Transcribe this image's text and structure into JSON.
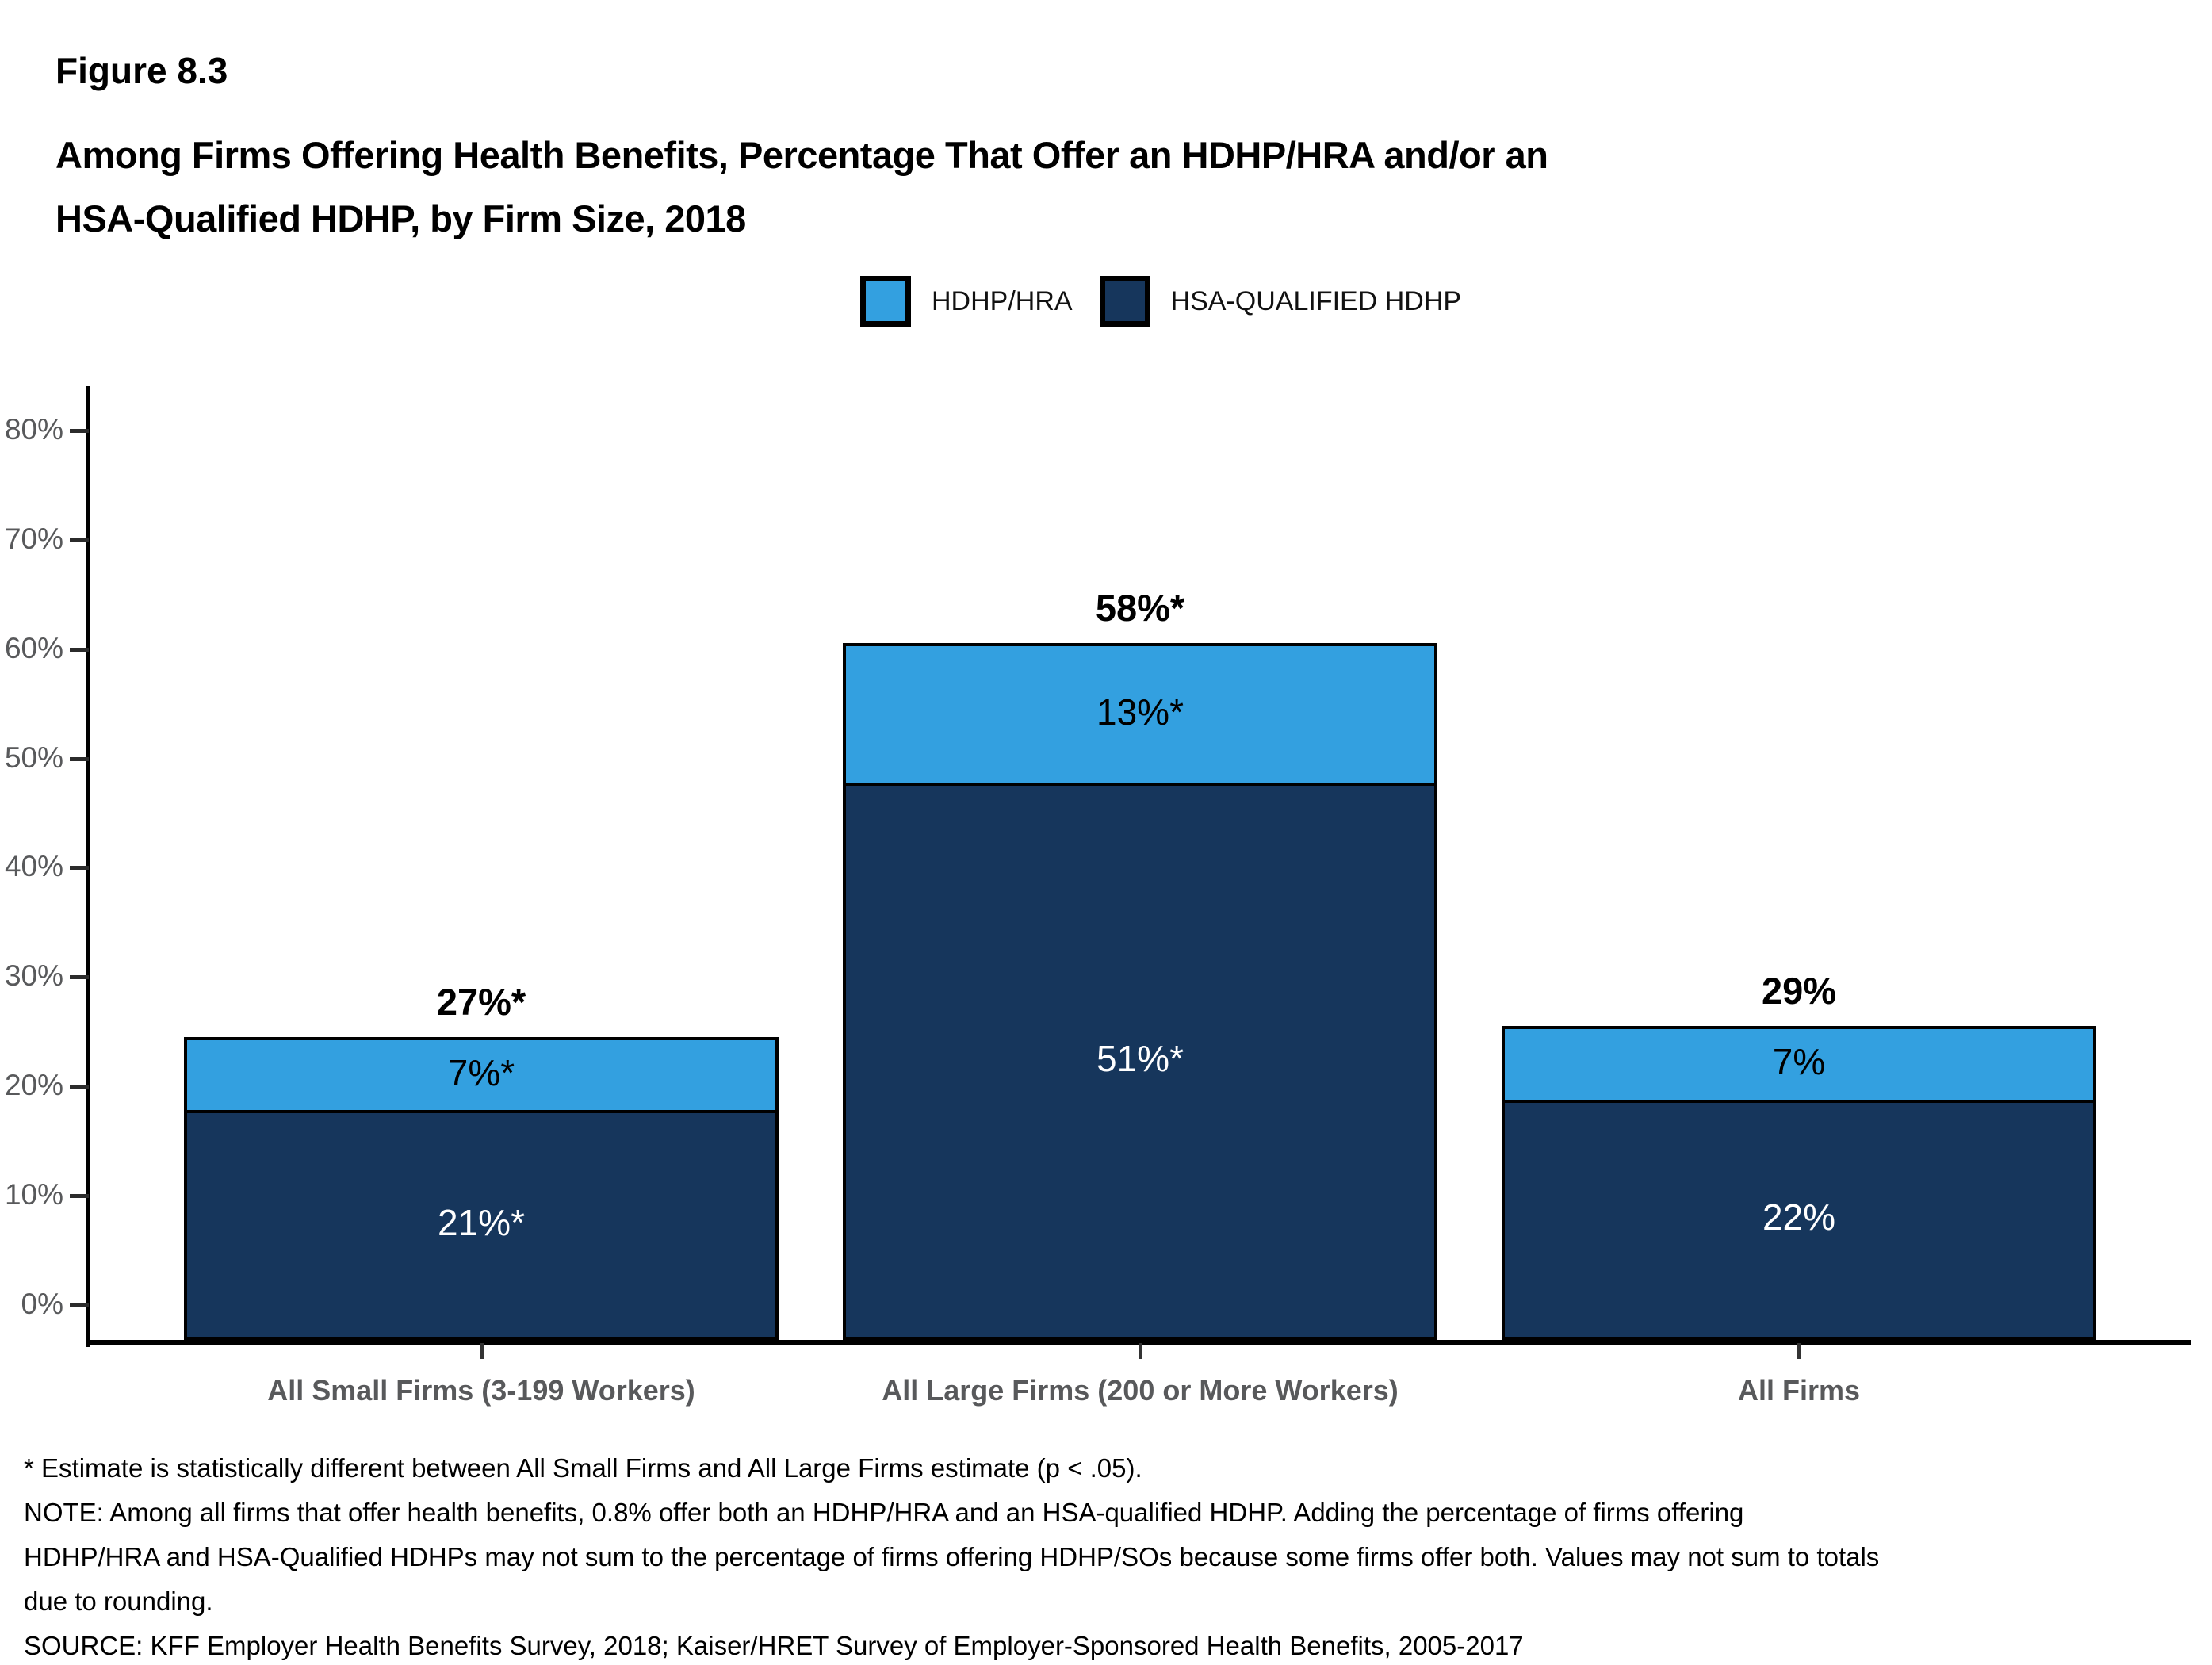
{
  "figure_label": "Figure 8.3",
  "title_line1": "Among Firms Offering Health Benefits, Percentage That Offer an HDHP/HRA and/or an",
  "title_line2": "HSA-Qualified HDHP, by Firm Size, 2018",
  "legend": {
    "items": [
      {
        "label": "HDHP/HRA",
        "color": "#33A0E0"
      },
      {
        "label": "HSA-QUALIFIED HDHP",
        "color": "#16365C"
      }
    ]
  },
  "chart_data": {
    "type": "bar",
    "stacked": true,
    "title": "Among Firms Offering Health Benefits, Percentage That Offer an HDHP/HRA and/or an HSA-Qualified HDHP, by Firm Size, 2018",
    "categories": [
      "All Small Firms (3-199 Workers)",
      "All Large Firms (200 or More Workers)",
      "All Firms"
    ],
    "series": [
      {
        "name": "HSA-QUALIFIED HDHP",
        "color": "#16365C",
        "values": [
          21,
          51,
          22
        ],
        "labels": [
          "21%*",
          "51%*",
          "22%"
        ]
      },
      {
        "name": "HDHP/HRA",
        "color": "#33A0E0",
        "values": [
          7,
          13,
          7
        ],
        "labels": [
          "7%*",
          "13%*",
          "7%"
        ]
      }
    ],
    "totals": [
      "27%*",
      "58%*",
      "29%"
    ],
    "xlabel": "",
    "ylabel": "",
    "ylim": [
      0,
      80
    ],
    "yticks": [
      "0%",
      "10%",
      "20%",
      "30%",
      "40%",
      "50%",
      "60%",
      "70%",
      "80%"
    ],
    "grid": false,
    "legend_position": "top-center"
  },
  "footnotes": [
    "* Estimate is statistically different between All Small Firms and All Large Firms estimate (p < .05).",
    "NOTE: Among all firms that offer health benefits, 0.8% offer both an HDHP/HRA and an HSA-qualified HDHP. Adding the percentage of firms offering",
    "HDHP/HRA and HSA-Qualified HDHPs may not sum to the percentage of firms offering HDHP/SOs because some firms offer both. Values may not sum to totals",
    "due to rounding.",
    "SOURCE: KFF Employer Health Benefits Survey, 2018; Kaiser/HRET Survey of Employer-Sponsored Health Benefits, 2005-2017"
  ]
}
